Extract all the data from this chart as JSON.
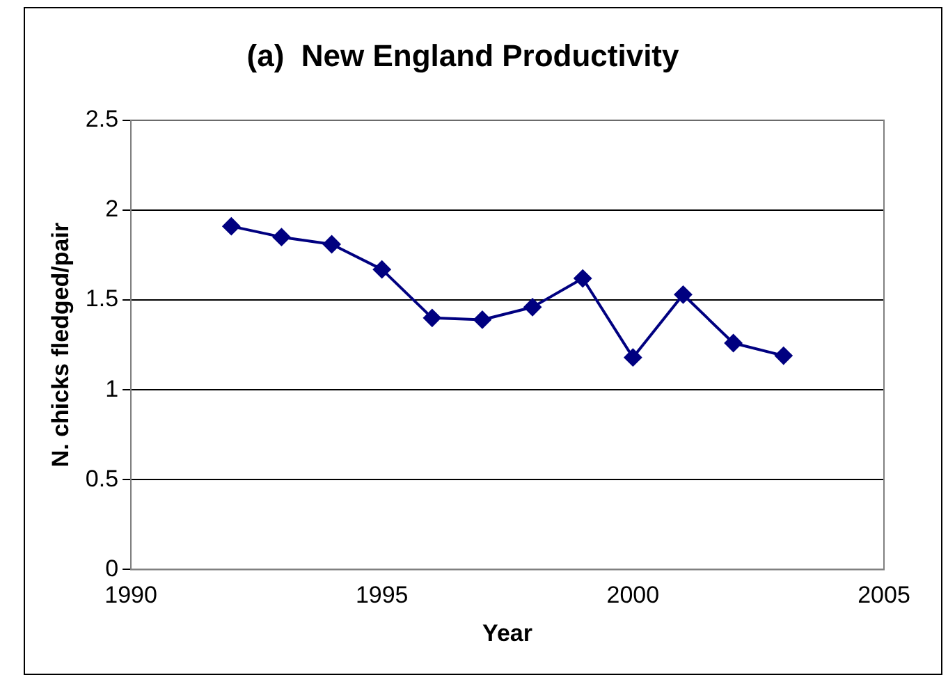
{
  "chart_data": {
    "type": "line",
    "title": "(a)  New England Productivity",
    "xlabel": "Year",
    "ylabel": "N. chicks fledged/pair",
    "x": [
      1992,
      1993,
      1994,
      1995,
      1996,
      1997,
      1998,
      1999,
      2000,
      2001,
      2002,
      2003
    ],
    "series": [
      {
        "color": "#000080",
        "values": [
          1.91,
          1.85,
          1.81,
          1.67,
          1.4,
          1.39,
          1.46,
          1.62,
          1.18,
          1.53,
          1.26,
          1.19
        ]
      }
    ],
    "xlim": [
      1990,
      2005
    ],
    "xticks": [
      1990,
      1995,
      2000,
      2005
    ],
    "ylim": [
      0,
      2.5
    ],
    "yticks": [
      0,
      0.5,
      1,
      1.5,
      2,
      2.5
    ],
    "grid": "y",
    "legend": false,
    "marker": "diamond",
    "line_style": "solid"
  }
}
